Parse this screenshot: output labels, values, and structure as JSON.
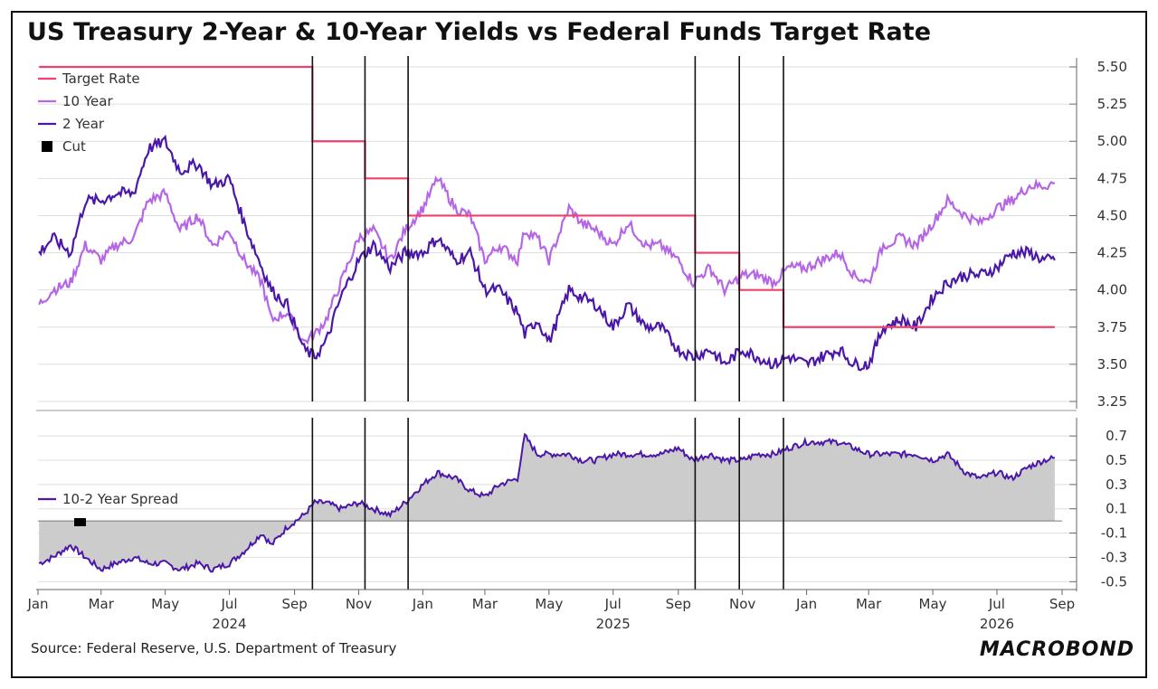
{
  "title": "US Treasury 2-Year & 10-Year Yields vs Federal Funds Target Rate",
  "source": "Source: Federal Reserve, U.S. Department of Treasury",
  "logo": "MACROBOND",
  "colors": {
    "target_rate": "#f0416a",
    "ten_year": "#b565e6",
    "two_year": "#4b17a8",
    "spread_fill": "#cccccc",
    "cut": "#000000"
  },
  "chart_data": [
    {
      "type": "line",
      "panel": "yields",
      "ylim": [
        3.25,
        5.5
      ],
      "yticks": [
        "5.50",
        "5.25",
        "5.00",
        "4.75",
        "4.50",
        "4.25",
        "4.00",
        "3.75",
        "3.50",
        "3.25"
      ],
      "legend_placement": "top-left",
      "grid": true,
      "series": [
        {
          "name": "Target Rate",
          "step": true,
          "points": [
            [
              "2024-01-02",
              5.5
            ],
            [
              "2024-09-18",
              5.0
            ],
            [
              "2024-11-07",
              4.75
            ],
            [
              "2024-12-18",
              4.5
            ],
            [
              "2025-09-17",
              4.25
            ],
            [
              "2025-10-29",
              4.0
            ],
            [
              "2025-12-10",
              3.75
            ],
            [
              "2026-08-25",
              3.75
            ]
          ]
        },
        {
          "name": "10 Year",
          "points": [
            [
              "2024-01-02",
              3.9
            ],
            [
              "2024-01-15",
              4.0
            ],
            [
              "2024-02-01",
              4.05
            ],
            [
              "2024-02-15",
              4.3
            ],
            [
              "2024-03-01",
              4.2
            ],
            [
              "2024-03-15",
              4.3
            ],
            [
              "2024-04-01",
              4.35
            ],
            [
              "2024-04-15",
              4.6
            ],
            [
              "2024-05-01",
              4.65
            ],
            [
              "2024-05-15",
              4.4
            ],
            [
              "2024-06-01",
              4.5
            ],
            [
              "2024-06-15",
              4.3
            ],
            [
              "2024-07-01",
              4.4
            ],
            [
              "2024-07-15",
              4.2
            ],
            [
              "2024-08-01",
              4.05
            ],
            [
              "2024-08-10",
              3.8
            ],
            [
              "2024-08-25",
              3.85
            ],
            [
              "2024-09-10",
              3.65
            ],
            [
              "2024-09-20",
              3.7
            ],
            [
              "2024-10-01",
              3.8
            ],
            [
              "2024-10-15",
              4.05
            ],
            [
              "2024-11-01",
              4.35
            ],
            [
              "2024-11-15",
              4.4
            ],
            [
              "2024-12-01",
              4.2
            ],
            [
              "2024-12-15",
              4.4
            ],
            [
              "2025-01-01",
              4.55
            ],
            [
              "2025-01-15",
              4.75
            ],
            [
              "2025-02-01",
              4.55
            ],
            [
              "2025-02-15",
              4.5
            ],
            [
              "2025-03-01",
              4.2
            ],
            [
              "2025-03-15",
              4.3
            ],
            [
              "2025-04-01",
              4.2
            ],
            [
              "2025-04-08",
              4.4
            ],
            [
              "2025-04-20",
              4.35
            ],
            [
              "2025-05-01",
              4.2
            ],
            [
              "2025-05-20",
              4.55
            ],
            [
              "2025-06-01",
              4.45
            ],
            [
              "2025-06-15",
              4.4
            ],
            [
              "2025-07-01",
              4.3
            ],
            [
              "2025-07-15",
              4.45
            ],
            [
              "2025-08-01",
              4.3
            ],
            [
              "2025-08-15",
              4.3
            ],
            [
              "2025-09-01",
              4.2
            ],
            [
              "2025-09-15",
              4.05
            ],
            [
              "2025-10-01",
              4.15
            ],
            [
              "2025-10-15",
              4.0
            ],
            [
              "2025-11-01",
              4.1
            ],
            [
              "2025-11-15",
              4.1
            ],
            [
              "2025-12-01",
              4.05
            ],
            [
              "2025-12-15",
              4.15
            ],
            [
              "2026-01-01",
              4.15
            ],
            [
              "2026-01-15",
              4.2
            ],
            [
              "2026-02-01",
              4.25
            ],
            [
              "2026-02-15",
              4.1
            ],
            [
              "2026-03-01",
              4.05
            ],
            [
              "2026-03-15",
              4.3
            ],
            [
              "2026-04-01",
              4.35
            ],
            [
              "2026-04-15",
              4.3
            ],
            [
              "2026-05-01",
              4.45
            ],
            [
              "2026-05-15",
              4.6
            ],
            [
              "2026-06-01",
              4.5
            ],
            [
              "2026-06-15",
              4.45
            ],
            [
              "2026-07-01",
              4.55
            ],
            [
              "2026-07-15",
              4.6
            ],
            [
              "2026-08-01",
              4.7
            ],
            [
              "2026-08-15",
              4.7
            ],
            [
              "2026-08-25",
              4.72
            ]
          ]
        },
        {
          "name": "2 Year",
          "points": [
            [
              "2024-01-02",
              4.25
            ],
            [
              "2024-01-15",
              4.35
            ],
            [
              "2024-02-01",
              4.25
            ],
            [
              "2024-02-15",
              4.6
            ],
            [
              "2024-03-01",
              4.6
            ],
            [
              "2024-03-15",
              4.65
            ],
            [
              "2024-04-01",
              4.65
            ],
            [
              "2024-04-15",
              4.95
            ],
            [
              "2024-05-01",
              5.0
            ],
            [
              "2024-05-15",
              4.8
            ],
            [
              "2024-06-01",
              4.85
            ],
            [
              "2024-06-15",
              4.7
            ],
            [
              "2024-07-01",
              4.75
            ],
            [
              "2024-07-15",
              4.45
            ],
            [
              "2024-08-01",
              4.15
            ],
            [
              "2024-08-10",
              4.0
            ],
            [
              "2024-08-25",
              3.9
            ],
            [
              "2024-09-10",
              3.6
            ],
            [
              "2024-09-20",
              3.55
            ],
            [
              "2024-10-01",
              3.65
            ],
            [
              "2024-10-15",
              3.95
            ],
            [
              "2024-11-01",
              4.2
            ],
            [
              "2024-11-15",
              4.3
            ],
            [
              "2024-12-01",
              4.15
            ],
            [
              "2024-12-15",
              4.25
            ],
            [
              "2025-01-01",
              4.25
            ],
            [
              "2025-01-15",
              4.35
            ],
            [
              "2025-02-01",
              4.2
            ],
            [
              "2025-02-15",
              4.25
            ],
            [
              "2025-03-01",
              4.0
            ],
            [
              "2025-03-15",
              4.0
            ],
            [
              "2025-04-01",
              3.85
            ],
            [
              "2025-04-08",
              3.7
            ],
            [
              "2025-04-20",
              3.8
            ],
            [
              "2025-05-01",
              3.65
            ],
            [
              "2025-05-20",
              4.0
            ],
            [
              "2025-06-01",
              3.95
            ],
            [
              "2025-06-15",
              3.9
            ],
            [
              "2025-07-01",
              3.75
            ],
            [
              "2025-07-15",
              3.9
            ],
            [
              "2025-08-01",
              3.75
            ],
            [
              "2025-08-15",
              3.75
            ],
            [
              "2025-09-01",
              3.6
            ],
            [
              "2025-09-15",
              3.55
            ],
            [
              "2025-10-01",
              3.6
            ],
            [
              "2025-10-15",
              3.5
            ],
            [
              "2025-11-01",
              3.6
            ],
            [
              "2025-11-15",
              3.55
            ],
            [
              "2025-12-01",
              3.5
            ],
            [
              "2025-12-15",
              3.55
            ],
            [
              "2026-01-01",
              3.5
            ],
            [
              "2026-01-15",
              3.55
            ],
            [
              "2026-02-01",
              3.6
            ],
            [
              "2026-02-15",
              3.5
            ],
            [
              "2026-03-01",
              3.5
            ],
            [
              "2026-03-15",
              3.75
            ],
            [
              "2026-04-01",
              3.8
            ],
            [
              "2026-04-15",
              3.75
            ],
            [
              "2026-05-01",
              3.95
            ],
            [
              "2026-05-15",
              4.05
            ],
            [
              "2026-06-01",
              4.1
            ],
            [
              "2026-06-15",
              4.1
            ],
            [
              "2026-07-01",
              4.15
            ],
            [
              "2026-07-15",
              4.25
            ],
            [
              "2026-08-01",
              4.25
            ],
            [
              "2026-08-15",
              4.2
            ],
            [
              "2026-08-25",
              4.2
            ]
          ]
        }
      ]
    },
    {
      "type": "area",
      "panel": "spread",
      "ylim": [
        -0.55,
        0.85
      ],
      "yticks": [
        "0.7",
        "0.5",
        "0.3",
        "0.1",
        "-0.1",
        "-0.3",
        "-0.5"
      ],
      "grid": true,
      "series": [
        {
          "name": "10-2 Year Spread",
          "points": [
            [
              "2024-01-02",
              -0.35
            ],
            [
              "2024-01-15",
              -0.3
            ],
            [
              "2024-02-01",
              -0.2
            ],
            [
              "2024-02-15",
              -0.3
            ],
            [
              "2024-03-01",
              -0.4
            ],
            [
              "2024-03-15",
              -0.35
            ],
            [
              "2024-04-01",
              -0.3
            ],
            [
              "2024-04-15",
              -0.35
            ],
            [
              "2024-05-01",
              -0.35
            ],
            [
              "2024-05-15",
              -0.4
            ],
            [
              "2024-06-01",
              -0.35
            ],
            [
              "2024-06-15",
              -0.4
            ],
            [
              "2024-07-01",
              -0.35
            ],
            [
              "2024-07-15",
              -0.25
            ],
            [
              "2024-08-01",
              -0.1
            ],
            [
              "2024-08-10",
              -0.2
            ],
            [
              "2024-08-25",
              -0.05
            ],
            [
              "2024-09-10",
              0.05
            ],
            [
              "2024-09-20",
              0.15
            ],
            [
              "2024-10-01",
              0.15
            ],
            [
              "2024-10-15",
              0.1
            ],
            [
              "2024-11-01",
              0.15
            ],
            [
              "2024-11-15",
              0.1
            ],
            [
              "2024-12-01",
              0.05
            ],
            [
              "2024-12-15",
              0.15
            ],
            [
              "2025-01-01",
              0.3
            ],
            [
              "2025-01-15",
              0.4
            ],
            [
              "2025-02-01",
              0.35
            ],
            [
              "2025-02-15",
              0.25
            ],
            [
              "2025-03-01",
              0.2
            ],
            [
              "2025-03-15",
              0.3
            ],
            [
              "2025-04-01",
              0.35
            ],
            [
              "2025-04-08",
              0.7
            ],
            [
              "2025-04-20",
              0.55
            ],
            [
              "2025-05-01",
              0.55
            ],
            [
              "2025-05-20",
              0.55
            ],
            [
              "2025-06-01",
              0.5
            ],
            [
              "2025-06-15",
              0.5
            ],
            [
              "2025-07-01",
              0.55
            ],
            [
              "2025-07-15",
              0.55
            ],
            [
              "2025-08-01",
              0.55
            ],
            [
              "2025-08-15",
              0.55
            ],
            [
              "2025-09-01",
              0.6
            ],
            [
              "2025-09-15",
              0.5
            ],
            [
              "2025-10-01",
              0.55
            ],
            [
              "2025-10-15",
              0.5
            ],
            [
              "2025-11-01",
              0.5
            ],
            [
              "2025-11-15",
              0.55
            ],
            [
              "2025-12-01",
              0.55
            ],
            [
              "2025-12-15",
              0.6
            ],
            [
              "2026-01-01",
              0.65
            ],
            [
              "2026-01-15",
              0.65
            ],
            [
              "2026-02-01",
              0.65
            ],
            [
              "2026-02-15",
              0.6
            ],
            [
              "2026-03-01",
              0.55
            ],
            [
              "2026-03-15",
              0.55
            ],
            [
              "2026-04-01",
              0.55
            ],
            [
              "2026-04-15",
              0.55
            ],
            [
              "2026-05-01",
              0.5
            ],
            [
              "2026-05-15",
              0.55
            ],
            [
              "2026-06-01",
              0.4
            ],
            [
              "2026-06-15",
              0.35
            ],
            [
              "2026-07-01",
              0.4
            ],
            [
              "2026-07-15",
              0.35
            ],
            [
              "2026-08-01",
              0.45
            ],
            [
              "2026-08-15",
              0.5
            ],
            [
              "2026-08-25",
              0.52
            ]
          ]
        }
      ]
    }
  ],
  "legend": {
    "items": [
      {
        "label": "Target Rate",
        "color": "#f0416a",
        "kind": "line"
      },
      {
        "label": "10 Year",
        "color": "#b565e6",
        "kind": "line"
      },
      {
        "label": "2 Year",
        "color": "#4b17a8",
        "kind": "line"
      },
      {
        "label": "Cut",
        "color": "#000000",
        "kind": "square"
      }
    ],
    "spread_label": "10-2 Year Spread"
  },
  "cut_dates": [
    "2024-09-18",
    "2024-11-07",
    "2024-12-18",
    "2025-09-17",
    "2025-10-29",
    "2025-12-10"
  ],
  "x_axis": {
    "range": [
      "2024-01-01",
      "2026-09-01"
    ],
    "ticks": [
      {
        "date": "2024-01-01",
        "label": "Jan"
      },
      {
        "date": "2024-03-01",
        "label": "Mar"
      },
      {
        "date": "2024-05-01",
        "label": "May"
      },
      {
        "date": "2024-07-01",
        "label": "Jul"
      },
      {
        "date": "2024-09-01",
        "label": "Sep"
      },
      {
        "date": "2024-11-01",
        "label": "Nov"
      },
      {
        "date": "2025-01-01",
        "label": "Jan"
      },
      {
        "date": "2025-03-01",
        "label": "Mar"
      },
      {
        "date": "2025-05-01",
        "label": "May"
      },
      {
        "date": "2025-07-01",
        "label": "Jul"
      },
      {
        "date": "2025-09-01",
        "label": "Sep"
      },
      {
        "date": "2025-11-01",
        "label": "Nov"
      },
      {
        "date": "2026-01-01",
        "label": "Jan"
      },
      {
        "date": "2026-03-01",
        "label": "Mar"
      },
      {
        "date": "2026-05-01",
        "label": "May"
      },
      {
        "date": "2026-07-01",
        "label": "Jul"
      },
      {
        "date": "2026-09-01",
        "label": "Sep"
      }
    ],
    "years": [
      {
        "date": "2024-07-01",
        "label": "2024"
      },
      {
        "date": "2025-07-01",
        "label": "2025"
      },
      {
        "date": "2026-07-01",
        "label": "2026"
      }
    ]
  }
}
